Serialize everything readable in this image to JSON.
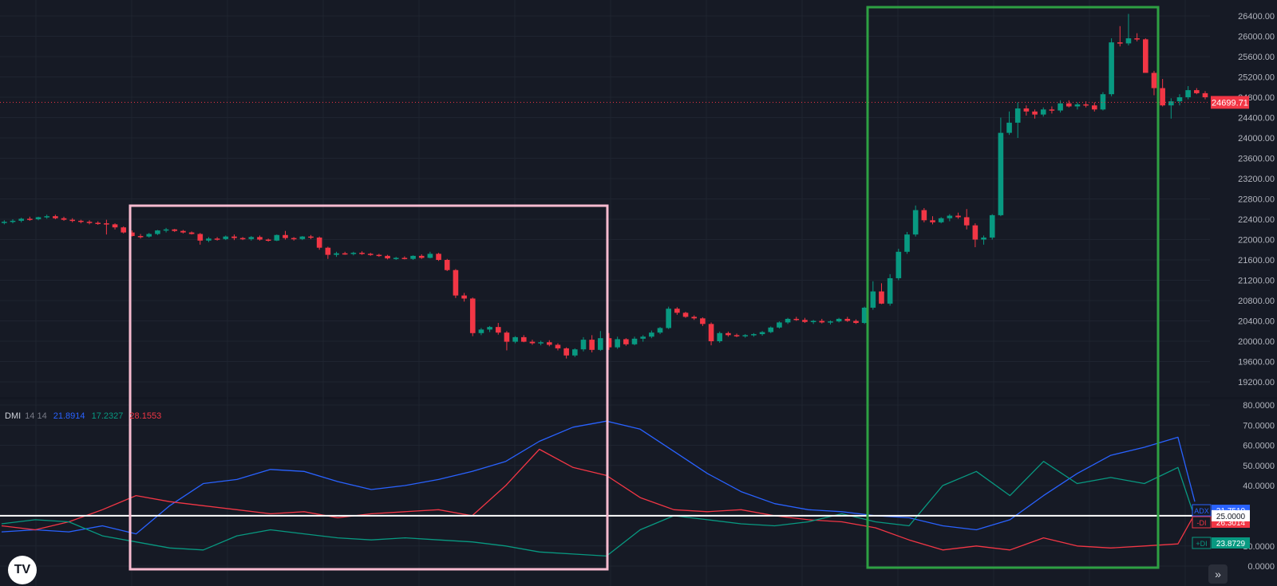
{
  "colors": {
    "background": "#161a25",
    "grid": "#1f2430",
    "up": "#089981",
    "down": "#f23645",
    "adx": "#2962ff",
    "minus_di": "#f23645",
    "plus_di": "#089981",
    "highlight_pink": "#f8bbd0",
    "highlight_green": "#2ea043",
    "level_line": "#ffffff"
  },
  "indicator_legend": {
    "name": "DMI",
    "params": "14 14",
    "adx_value": "21.8914",
    "plus_di_value": "17.2327",
    "minus_di_value": "28.1553"
  },
  "price_axis": {
    "ticks": [
      "26400.00",
      "26000.00",
      "25600.00",
      "25200.00",
      "24800.00",
      "24400.00",
      "24000.00",
      "23600.00",
      "23200.00",
      "22800.00",
      "22400.00",
      "22000.00",
      "21600.00",
      "21200.00",
      "20800.00",
      "20400.00",
      "20000.00",
      "19600.00",
      "19200.00"
    ],
    "last_price_label": "24699.71"
  },
  "indicator_axis": {
    "ticks": [
      "80.0000",
      "70.0000",
      "60.0000",
      "50.0000",
      "40.0000",
      "10.0000",
      "0.0000"
    ],
    "level_label": "25.0000",
    "adx_tag": "ADX",
    "adx_last": "31.7510",
    "minus_di_tag": "-DI",
    "minus_di_last": "26.3014",
    "plus_di_tag": "+DI",
    "plus_di_last": "23.8729"
  },
  "logo_text": "TV",
  "goto_icon": "double-chevron-right-icon",
  "chart_data": [
    {
      "type": "candlestick",
      "title": "",
      "ylim": [
        19000,
        26600
      ],
      "level_line": 24699.71,
      "bar_count": 120,
      "ohlc": [
        [
          22330,
          22380,
          22300,
          22350
        ],
        [
          22350,
          22400,
          22320,
          22370
        ],
        [
          22370,
          22430,
          22340,
          22410
        ],
        [
          22410,
          22450,
          22370,
          22400
        ],
        [
          22400,
          22450,
          22380,
          22440
        ],
        [
          22440,
          22490,
          22410,
          22460
        ],
        [
          22460,
          22490,
          22400,
          22420
        ],
        [
          22420,
          22450,
          22370,
          22390
        ],
        [
          22390,
          22420,
          22340,
          22370
        ],
        [
          22370,
          22390,
          22320,
          22350
        ],
        [
          22350,
          22380,
          22300,
          22330
        ],
        [
          22330,
          22360,
          22290,
          22320
        ],
        [
          22320,
          22390,
          22100,
          22300
        ],
        [
          22300,
          22320,
          22200,
          22240
        ],
        [
          22240,
          22260,
          22120,
          22140
        ],
        [
          22140,
          22180,
          22060,
          22070
        ],
        [
          22070,
          22110,
          22020,
          22060
        ],
        [
          22060,
          22130,
          22040,
          22110
        ],
        [
          22110,
          22190,
          22090,
          22180
        ],
        [
          22180,
          22230,
          22140,
          22200
        ],
        [
          22200,
          22210,
          22150,
          22170
        ],
        [
          22170,
          22190,
          22120,
          22140
        ],
        [
          22140,
          22160,
          22100,
          22110
        ],
        [
          22110,
          22130,
          21900,
          21980
        ],
        [
          21980,
          22050,
          21950,
          22020
        ],
        [
          22020,
          22050,
          21980,
          22010
        ],
        [
          22010,
          22080,
          21990,
          22060
        ],
        [
          22060,
          22100,
          21990,
          22030
        ],
        [
          22030,
          22050,
          21990,
          22010
        ],
        [
          22010,
          22070,
          21980,
          22050
        ],
        [
          22050,
          22080,
          21980,
          22000
        ],
        [
          22000,
          22020,
          21960,
          21980
        ],
        [
          21980,
          22100,
          21970,
          22090
        ],
        [
          22090,
          22170,
          22000,
          22030
        ],
        [
          22030,
          22050,
          21980,
          22010
        ],
        [
          22010,
          22070,
          21990,
          22060
        ],
        [
          22060,
          22090,
          22010,
          22040
        ],
        [
          22040,
          22060,
          21800,
          21840
        ],
        [
          21840,
          21860,
          21620,
          21700
        ],
        [
          21700,
          21760,
          21660,
          21730
        ],
        [
          21730,
          21760,
          21700,
          21720
        ],
        [
          21720,
          21760,
          21690,
          21740
        ],
        [
          21740,
          21770,
          21700,
          21720
        ],
        [
          21720,
          21740,
          21680,
          21700
        ],
        [
          21700,
          21720,
          21660,
          21680
        ],
        [
          21680,
          21700,
          21610,
          21630
        ],
        [
          21630,
          21660,
          21600,
          21640
        ],
        [
          21640,
          21670,
          21610,
          21620
        ],
        [
          21620,
          21690,
          21600,
          21680
        ],
        [
          21680,
          21710,
          21620,
          21640
        ],
        [
          21640,
          21760,
          21630,
          21720
        ],
        [
          21720,
          21740,
          21580,
          21600
        ],
        [
          21600,
          21620,
          21380,
          21400
        ],
        [
          21400,
          21420,
          20850,
          20900
        ],
        [
          20900,
          20950,
          20780,
          20840
        ],
        [
          20840,
          20860,
          20100,
          20160
        ],
        [
          20160,
          20260,
          20120,
          20230
        ],
        [
          20230,
          20300,
          20180,
          20280
        ],
        [
          20280,
          20360,
          20130,
          20170
        ],
        [
          20170,
          20200,
          19820,
          19990
        ],
        [
          19990,
          20100,
          19960,
          20080
        ],
        [
          20080,
          20120,
          19980,
          19990
        ],
        [
          19990,
          20030,
          19930,
          19960
        ],
        [
          19960,
          20010,
          19920,
          19980
        ],
        [
          19980,
          20020,
          19900,
          19930
        ],
        [
          19930,
          19960,
          19820,
          19860
        ],
        [
          19860,
          19880,
          19660,
          19720
        ],
        [
          19720,
          19860,
          19690,
          19840
        ],
        [
          19840,
          20080,
          19800,
          20030
        ],
        [
          20030,
          20120,
          19780,
          19830
        ],
        [
          19830,
          20200,
          19810,
          20060
        ],
        [
          20060,
          20160,
          19830,
          19880
        ],
        [
          19880,
          20090,
          19850,
          20040
        ],
        [
          20040,
          20060,
          19910,
          19940
        ],
        [
          19940,
          20090,
          19920,
          20050
        ],
        [
          20050,
          20120,
          19990,
          20090
        ],
        [
          20090,
          20210,
          20060,
          20170
        ],
        [
          20170,
          20280,
          20140,
          20260
        ],
        [
          20260,
          20680,
          20240,
          20640
        ],
        [
          20640,
          20670,
          20520,
          20560
        ],
        [
          20560,
          20580,
          20460,
          20480
        ],
        [
          20480,
          20510,
          20420,
          20450
        ],
        [
          20450,
          20470,
          20300,
          20340
        ],
        [
          20340,
          20370,
          19920,
          20000
        ],
        [
          20000,
          20190,
          19970,
          20160
        ],
        [
          20160,
          20190,
          20090,
          20120
        ],
        [
          20120,
          20150,
          20080,
          20110
        ],
        [
          20110,
          20140,
          20070,
          20120
        ],
        [
          20120,
          20160,
          20090,
          20140
        ],
        [
          20140,
          20200,
          20110,
          20180
        ],
        [
          20180,
          20290,
          20160,
          20270
        ],
        [
          20270,
          20390,
          20250,
          20370
        ],
        [
          20370,
          20460,
          20340,
          20440
        ],
        [
          20440,
          20480,
          20400,
          20420
        ],
        [
          20420,
          20460,
          20360,
          20380
        ],
        [
          20380,
          20420,
          20340,
          20400
        ],
        [
          20400,
          20440,
          20350,
          20370
        ],
        [
          20370,
          20410,
          20330,
          20390
        ],
        [
          20390,
          20460,
          20370,
          20440
        ],
        [
          20440,
          20480,
          20380,
          20400
        ],
        [
          20400,
          20430,
          20340,
          20360
        ],
        [
          20360,
          20680,
          20340,
          20660
        ],
        [
          20660,
          21180,
          20620,
          20980
        ],
        [
          20980,
          21140,
          20730,
          20740
        ],
        [
          20740,
          21320,
          20700,
          21240
        ],
        [
          21240,
          21820,
          21200,
          21760
        ],
        [
          21760,
          22150,
          21720,
          22100
        ],
        [
          22100,
          22670,
          22060,
          22580
        ],
        [
          22580,
          22620,
          22340,
          22380
        ],
        [
          22380,
          22460,
          22300,
          22340
        ],
        [
          22340,
          22440,
          22320,
          22420
        ],
        [
          22420,
          22500,
          22360,
          22470
        ],
        [
          22470,
          22530,
          22410,
          22440
        ],
        [
          22440,
          22600,
          22200,
          22280
        ],
        [
          22280,
          22320,
          21850,
          22000
        ],
        [
          22000,
          22080,
          21900,
          22040
        ],
        [
          22040,
          22500,
          22000,
          22480
        ],
        [
          22480,
          24400,
          22460,
          24100
        ],
        [
          24100,
          24520,
          24060,
          24300
        ],
        [
          24300,
          24700,
          24000,
          24580
        ]
      ],
      "tail_ohlc": [
        [
          24580,
          24640,
          24440,
          24520
        ],
        [
          24520,
          24560,
          24380,
          24460
        ],
        [
          24460,
          24600,
          24420,
          24560
        ],
        [
          24560,
          24620,
          24480,
          24540
        ],
        [
          24540,
          24740,
          24500,
          24680
        ],
        [
          24680,
          24740,
          24600,
          24620
        ],
        [
          24620,
          24700,
          24560,
          24660
        ],
        [
          24660,
          24720,
          24600,
          24640
        ],
        [
          24640,
          24700,
          24520,
          24560
        ],
        [
          24560,
          24900,
          24540,
          24860
        ],
        [
          24860,
          25960,
          24820,
          25880
        ],
        [
          25880,
          26200,
          25800,
          25860
        ],
        [
          25860,
          26440,
          25820,
          25960
        ],
        [
          25960,
          26060,
          25900,
          25940
        ],
        [
          25940,
          25960,
          25400,
          25280
        ],
        [
          25280,
          25320,
          24840,
          24980
        ],
        [
          24980,
          25160,
          24620,
          24640
        ],
        [
          24640,
          24780,
          24380,
          24720
        ],
        [
          24720,
          24860,
          24640,
          24800
        ],
        [
          24800,
          25020,
          24760,
          24940
        ],
        [
          24940,
          24980,
          24860,
          24880
        ],
        [
          24880,
          24920,
          24760,
          24800
        ],
        [
          24800,
          24820,
          24680,
          24700
        ]
      ]
    },
    {
      "type": "line",
      "title": "DMI 14 14",
      "ylim": [
        0,
        80
      ],
      "level_line": 25,
      "x": [
        0,
        4,
        8,
        12,
        16,
        20,
        24,
        28,
        32,
        36,
        40,
        44,
        48,
        52,
        56,
        60,
        64,
        68,
        72,
        76,
        80,
        84,
        88,
        92,
        96,
        100,
        104,
        108,
        112,
        116,
        120,
        124,
        128,
        132,
        136,
        140,
        142
      ],
      "series": [
        {
          "name": "ADX",
          "values": [
            17,
            18,
            17,
            20,
            16,
            30,
            41,
            43,
            48,
            47,
            42,
            38,
            40,
            43,
            47,
            52,
            62,
            69,
            72,
            68,
            57,
            46,
            37,
            31,
            28,
            27,
            25,
            24,
            20,
            18,
            23,
            35,
            46,
            55,
            59,
            64,
            32
          ]
        },
        {
          "name": "-DI",
          "values": [
            20,
            18,
            22,
            28,
            35,
            32,
            30,
            28,
            26,
            27,
            24,
            26,
            27,
            28,
            25,
            40,
            58,
            49,
            45,
            34,
            28,
            27,
            28,
            25,
            23,
            22,
            19,
            13,
            8,
            10,
            8,
            14,
            10,
            9,
            10,
            11,
            26
          ]
        },
        {
          "name": "+DI",
          "values": [
            21,
            23,
            22,
            15,
            12,
            9,
            8,
            15,
            18,
            16,
            14,
            13,
            14,
            13,
            12,
            10,
            7,
            6,
            5,
            18,
            25,
            23,
            21,
            20,
            22,
            26,
            22,
            20,
            40,
            47,
            35,
            52,
            41,
            44,
            41,
            49,
            24
          ]
        }
      ]
    }
  ]
}
